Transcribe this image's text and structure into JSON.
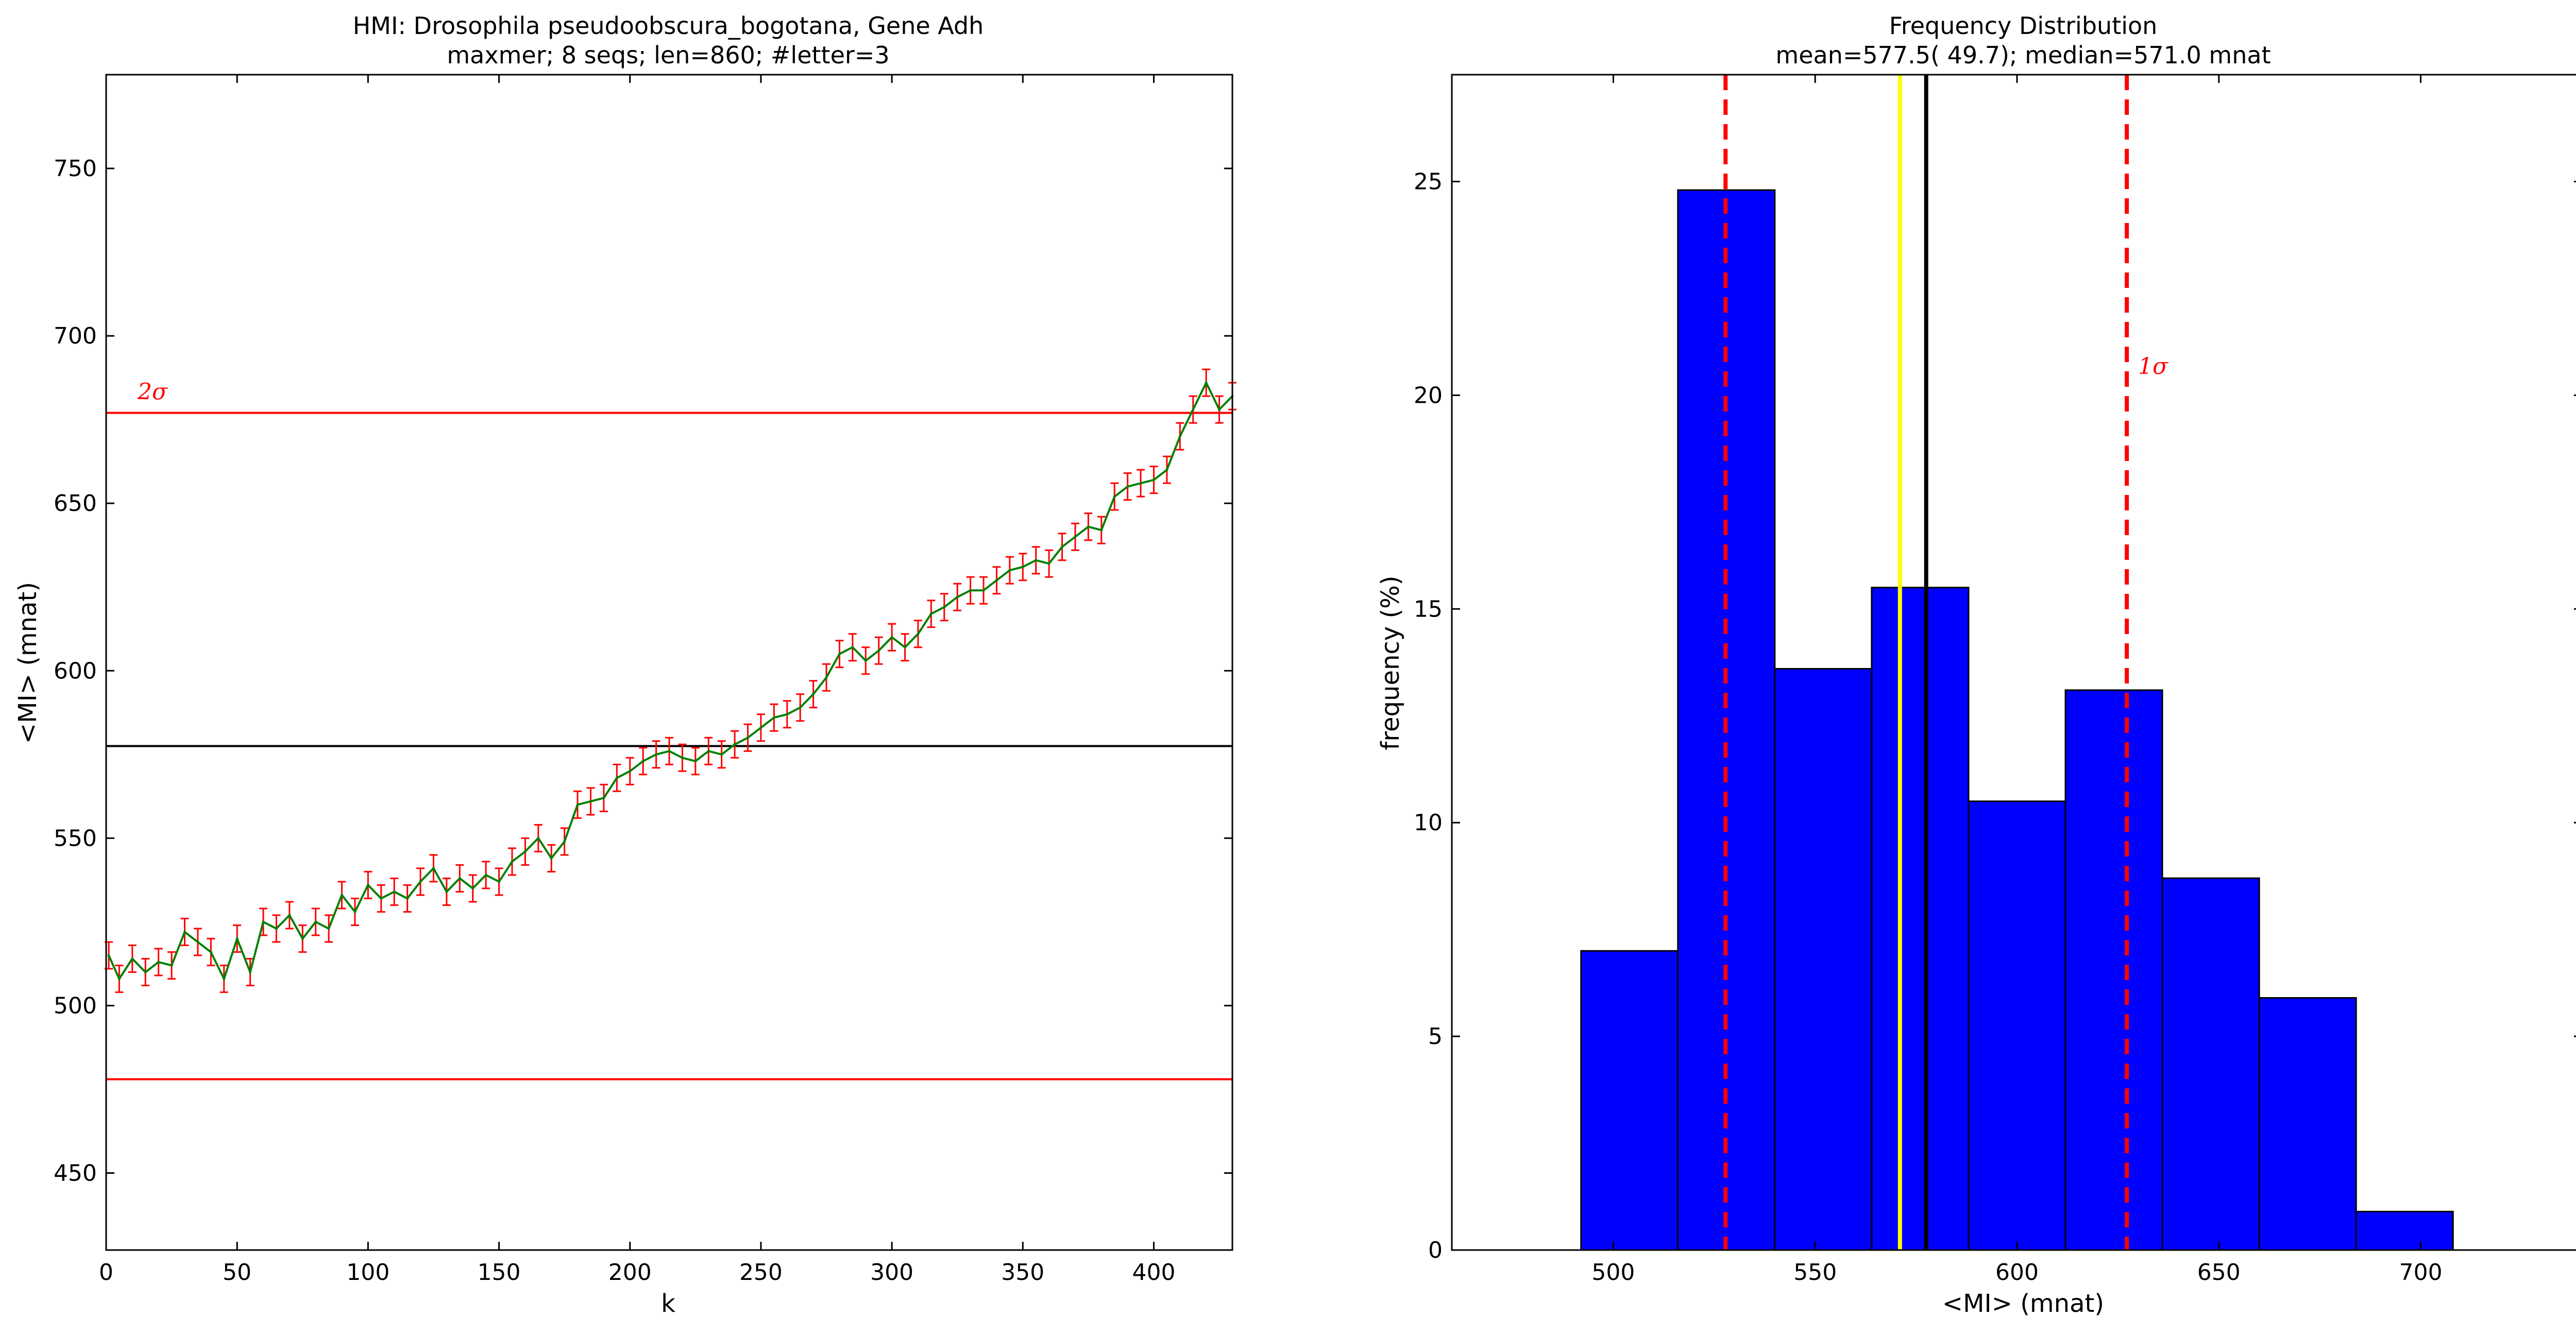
{
  "chart_data": [
    {
      "type": "line",
      "title": "HMI: Drosophila pseudoobscura_bogotana, Gene Adh",
      "subtitle": "maxmer; 8 seqs; len=860; #letter=3",
      "xlabel": "k",
      "ylabel": "<MI> (mnat)",
      "xlim": [
        0,
        430
      ],
      "ylim": [
        427,
        778
      ],
      "xticks": [
        0,
        50,
        100,
        150,
        200,
        250,
        300,
        350,
        400
      ],
      "xtick_labels": [
        "0",
        "50",
        "100",
        "150",
        "200",
        "250",
        "300",
        "350",
        "400"
      ],
      "yticks": [
        450,
        500,
        550,
        600,
        650,
        700,
        750
      ],
      "ytick_labels": [
        "450",
        "500",
        "550",
        "600",
        "650",
        "700",
        "750"
      ],
      "series": [
        {
          "line_color": "#007f00",
          "errorbar_color": "#ff0000",
          "errorbar_halfwidth": 4,
          "x": [
            1,
            5,
            10,
            15,
            20,
            25,
            30,
            35,
            40,
            45,
            50,
            55,
            60,
            65,
            70,
            75,
            80,
            85,
            90,
            95,
            100,
            105,
            110,
            115,
            120,
            125,
            130,
            135,
            140,
            145,
            150,
            155,
            160,
            165,
            170,
            175,
            180,
            185,
            190,
            195,
            200,
            205,
            210,
            215,
            220,
            225,
            230,
            235,
            240,
            245,
            250,
            255,
            260,
            265,
            270,
            275,
            280,
            285,
            290,
            295,
            300,
            305,
            310,
            315,
            320,
            325,
            330,
            335,
            340,
            345,
            350,
            355,
            360,
            365,
            370,
            375,
            380,
            385,
            390,
            395,
            400,
            405,
            410,
            415,
            420,
            425,
            430
          ],
          "y": [
            515,
            508,
            514,
            510,
            513,
            512,
            522,
            519,
            516,
            508,
            520,
            510,
            525,
            523,
            527,
            520,
            525,
            523,
            533,
            528,
            536,
            532,
            534,
            532,
            537,
            541,
            534,
            538,
            535,
            539,
            537,
            543,
            546,
            550,
            544,
            549,
            560,
            561,
            562,
            568,
            570,
            573,
            575,
            576,
            574,
            573,
            576,
            575,
            578,
            580,
            583,
            586,
            587,
            589,
            593,
            598,
            605,
            607,
            603,
            606,
            610,
            607,
            611,
            617,
            619,
            622,
            624,
            624,
            627,
            630,
            631,
            633,
            632,
            637,
            640,
            643,
            642,
            652,
            655,
            656,
            657,
            660,
            670,
            678,
            686,
            678,
            682
          ]
        }
      ],
      "hlines": [
        {
          "y": 577.5,
          "color": "#000000"
        },
        {
          "y": 677,
          "color": "#ff0000"
        },
        {
          "y": 478,
          "color": "#ff0000"
        }
      ],
      "annotations": [
        {
          "text": "2σ",
          "x": 12,
          "y": 681,
          "color": "#ff0000"
        }
      ]
    },
    {
      "type": "bar",
      "title": "Frequency Distribution",
      "subtitle": "mean=577.5( 49.7); median=571.0 mnat",
      "xlabel": "<MI> (mnat)",
      "ylabel": "frequency (%)",
      "xlim": [
        460,
        740
      ],
      "ylim": [
        0,
        27.5
      ],
      "xticks": [
        500,
        550,
        600,
        650,
        700
      ],
      "xtick_labels": [
        "500",
        "550",
        "600",
        "650",
        "700"
      ],
      "yticks": [
        0,
        5,
        10,
        15,
        20,
        25
      ],
      "ytick_labels": [
        "0",
        "5",
        "10",
        "15",
        "20",
        "25"
      ],
      "bar_color": "#0000ff",
      "bins": [
        {
          "start": 492,
          "end": 516,
          "value": 7.0
        },
        {
          "start": 516,
          "end": 540,
          "value": 24.8
        },
        {
          "start": 540,
          "end": 564,
          "value": 13.6
        },
        {
          "start": 564,
          "end": 588,
          "value": 15.5
        },
        {
          "start": 588,
          "end": 612,
          "value": 10.5
        },
        {
          "start": 612,
          "end": 636,
          "value": 13.1
        },
        {
          "start": 636,
          "end": 660,
          "value": 8.7
        },
        {
          "start": 660,
          "end": 684,
          "value": 5.9
        },
        {
          "start": 684,
          "end": 708,
          "value": 0.9
        }
      ],
      "vlines": [
        {
          "x": 571.0,
          "color": "#ffff00",
          "style": "solid"
        },
        {
          "x": 577.5,
          "color": "#000000",
          "style": "solid"
        },
        {
          "x": 527.8,
          "color": "#ff0000",
          "style": "dashed"
        },
        {
          "x": 627.2,
          "color": "#ff0000",
          "style": "dashed"
        }
      ],
      "annotations": [
        {
          "text": "1σ",
          "x": 630,
          "y": 20.5,
          "color": "#ff0000"
        }
      ]
    }
  ]
}
